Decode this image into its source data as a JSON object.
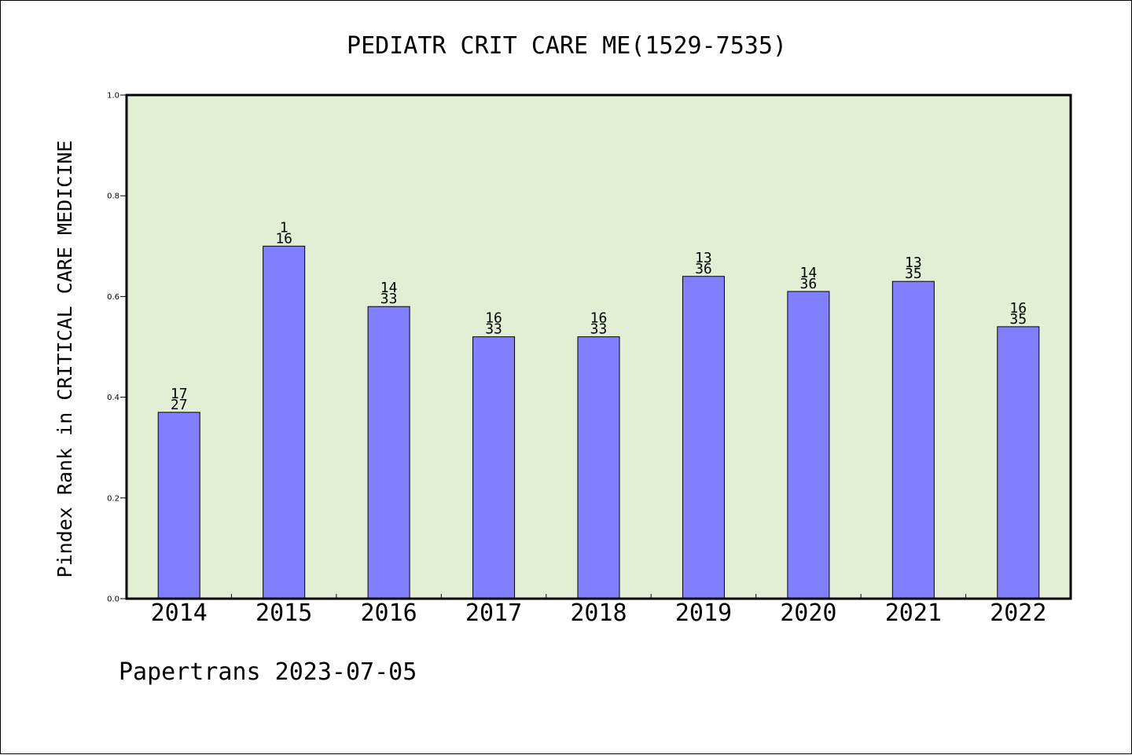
{
  "chart_data": {
    "type": "bar",
    "title": "PEDIATR CRIT CARE ME(1529-7535)",
    "ylabel": "Pindex Rank in CRITICAL CARE MEDICINE",
    "xlabel": "",
    "ylim": [
      0,
      1.0
    ],
    "yticks": [
      "0.0",
      "0.2",
      "0.4",
      "0.6",
      "0.8",
      "1.0"
    ],
    "categories": [
      "2014",
      "2015",
      "2016",
      "2017",
      "2018",
      "2019",
      "2020",
      "2021",
      "2022"
    ],
    "values": [
      0.37,
      0.7,
      0.58,
      0.52,
      0.52,
      0.64,
      0.61,
      0.63,
      0.54
    ],
    "rank": [
      "17",
      "1",
      "14",
      "16",
      "16",
      "13",
      "14",
      "13",
      "16"
    ],
    "total": [
      "27",
      "16",
      "33",
      "33",
      "33",
      "36",
      "36",
      "35",
      "35"
    ],
    "grid": false,
    "bar_color": "#8080ff",
    "plot_background": "#e2efd5"
  },
  "footer": "Papertrans 2023-07-05"
}
